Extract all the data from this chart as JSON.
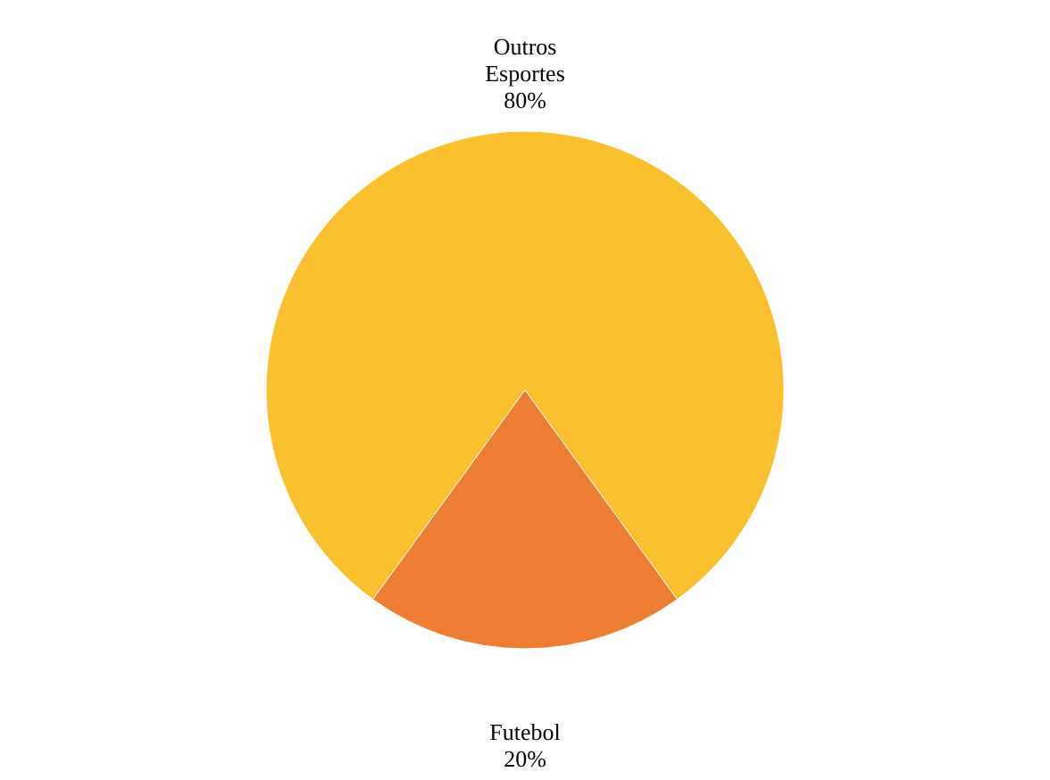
{
  "chart_data": {
    "type": "pie",
    "categories": [
      "Outros Esportes",
      "Futebol"
    ],
    "values": [
      80,
      20
    ],
    "colors": [
      "#fbc02d",
      "#ed7d31"
    ],
    "value_labels": [
      "80%",
      "20%"
    ],
    "legend": false
  }
}
